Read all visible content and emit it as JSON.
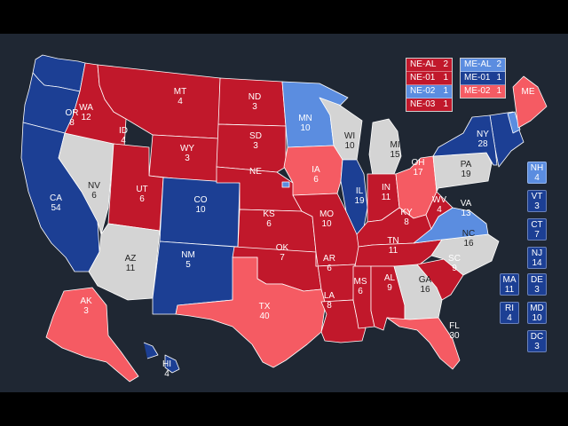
{
  "colors": {
    "safe_d": "#1c3f94",
    "lean_d": "#5b8de0",
    "tossup": "#d4d4d4",
    "lean_r": "#f55b63",
    "safe_r": "#c1182b",
    "background": "#1f2733"
  },
  "states": [
    {
      "abbr": "WA",
      "ev": "12",
      "rating": "safe_d"
    },
    {
      "abbr": "OR",
      "ev": "8",
      "rating": "safe_d"
    },
    {
      "abbr": "CA",
      "ev": "54",
      "rating": "safe_d"
    },
    {
      "abbr": "NV",
      "ev": "6",
      "rating": "tossup"
    },
    {
      "abbr": "ID",
      "ev": "4",
      "rating": "safe_r"
    },
    {
      "abbr": "MT",
      "ev": "4",
      "rating": "safe_r"
    },
    {
      "abbr": "WY",
      "ev": "3",
      "rating": "safe_r"
    },
    {
      "abbr": "UT",
      "ev": "6",
      "rating": "safe_r"
    },
    {
      "abbr": "AZ",
      "ev": "11",
      "rating": "tossup"
    },
    {
      "abbr": "CO",
      "ev": "10",
      "rating": "safe_d"
    },
    {
      "abbr": "NM",
      "ev": "5",
      "rating": "safe_d"
    },
    {
      "abbr": "ND",
      "ev": "3",
      "rating": "safe_r"
    },
    {
      "abbr": "SD",
      "ev": "3",
      "rating": "safe_r"
    },
    {
      "abbr": "NE",
      "ev": "",
      "rating": "safe_r"
    },
    {
      "abbr": "KS",
      "ev": "6",
      "rating": "safe_r"
    },
    {
      "abbr": "OK",
      "ev": "7",
      "rating": "safe_r"
    },
    {
      "abbr": "TX",
      "ev": "40",
      "rating": "lean_r"
    },
    {
      "abbr": "MN",
      "ev": "10",
      "rating": "lean_d"
    },
    {
      "abbr": "IA",
      "ev": "6",
      "rating": "lean_r"
    },
    {
      "abbr": "MO",
      "ev": "10",
      "rating": "safe_r"
    },
    {
      "abbr": "AR",
      "ev": "6",
      "rating": "safe_r"
    },
    {
      "abbr": "LA",
      "ev": "8",
      "rating": "safe_r"
    },
    {
      "abbr": "WI",
      "ev": "10",
      "rating": "tossup"
    },
    {
      "abbr": "IL",
      "ev": "19",
      "rating": "safe_d"
    },
    {
      "abbr": "MI",
      "ev": "15",
      "rating": "tossup"
    },
    {
      "abbr": "IN",
      "ev": "11",
      "rating": "safe_r"
    },
    {
      "abbr": "OH",
      "ev": "17",
      "rating": "lean_r"
    },
    {
      "abbr": "KY",
      "ev": "8",
      "rating": "safe_r"
    },
    {
      "abbr": "TN",
      "ev": "11",
      "rating": "safe_r"
    },
    {
      "abbr": "MS",
      "ev": "6",
      "rating": "safe_r"
    },
    {
      "abbr": "AL",
      "ev": "9",
      "rating": "safe_r"
    },
    {
      "abbr": "GA",
      "ev": "16",
      "rating": "tossup"
    },
    {
      "abbr": "FL",
      "ev": "30",
      "rating": "lean_r"
    },
    {
      "abbr": "SC",
      "ev": "9",
      "rating": "safe_r"
    },
    {
      "abbr": "NC",
      "ev": "16",
      "rating": "tossup"
    },
    {
      "abbr": "VA",
      "ev": "13",
      "rating": "lean_d"
    },
    {
      "abbr": "WV",
      "ev": "4",
      "rating": "safe_r"
    },
    {
      "abbr": "PA",
      "ev": "19",
      "rating": "tossup"
    },
    {
      "abbr": "NY",
      "ev": "28",
      "rating": "safe_d"
    },
    {
      "abbr": "ME",
      "ev": "",
      "rating": "lean_r"
    },
    {
      "abbr": "AK",
      "ev": "3",
      "rating": "lean_r"
    },
    {
      "abbr": "HI",
      "ev": "4",
      "rating": "safe_d"
    }
  ],
  "side_boxes": [
    {
      "abbr": "NH",
      "ev": "4",
      "rating": "lean_d"
    },
    {
      "abbr": "VT",
      "ev": "3",
      "rating": "safe_d"
    },
    {
      "abbr": "CT",
      "ev": "7",
      "rating": "safe_d"
    },
    {
      "abbr": "NJ",
      "ev": "14",
      "rating": "safe_d"
    },
    {
      "abbr": "MA",
      "ev": "11",
      "rating": "safe_d"
    },
    {
      "abbr": "DE",
      "ev": "3",
      "rating": "safe_d"
    },
    {
      "abbr": "RI",
      "ev": "4",
      "rating": "safe_d"
    },
    {
      "abbr": "MD",
      "ev": "10",
      "rating": "safe_d"
    },
    {
      "abbr": "DC",
      "ev": "3",
      "rating": "safe_d"
    }
  ],
  "legend_ne": [
    {
      "label": "NE-AL",
      "ev": "2",
      "rating": "safe_r"
    },
    {
      "label": "NE-01",
      "ev": "1",
      "rating": "safe_r"
    },
    {
      "label": "NE-02",
      "ev": "1",
      "rating": "lean_d"
    },
    {
      "label": "NE-03",
      "ev": "1",
      "rating": "safe_r"
    }
  ],
  "legend_me": [
    {
      "label": "ME-AL",
      "ev": "2",
      "rating": "lean_d"
    },
    {
      "label": "ME-01",
      "ev": "1",
      "rating": "safe_d"
    },
    {
      "label": "ME-02",
      "ev": "1",
      "rating": "lean_r"
    }
  ]
}
